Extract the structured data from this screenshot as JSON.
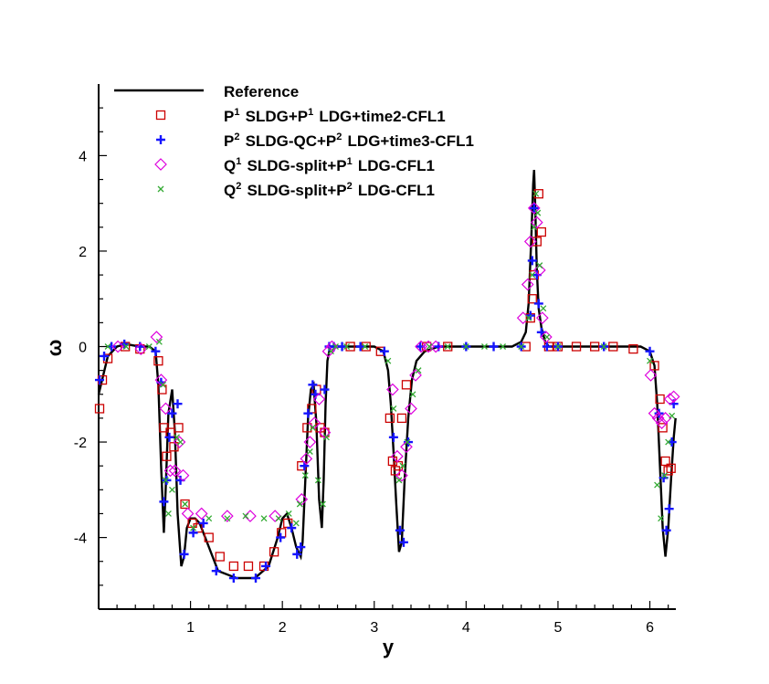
{
  "chart_data": {
    "type": "line",
    "title": "",
    "xlabel": "y",
    "ylabel": "ω",
    "xlim": [
      0,
      6.283
    ],
    "ylim": [
      -5.5,
      5.5
    ],
    "x_ticks": [
      1,
      2,
      3,
      4,
      5,
      6
    ],
    "y_ticks": [
      -4,
      -2,
      0,
      2,
      4
    ],
    "grid": false,
    "legend_position": "top-left",
    "reference": {
      "name": "Reference",
      "color": "#000000",
      "x": [
        0.0,
        0.1,
        0.2,
        0.3,
        0.45,
        0.55,
        0.62,
        0.65,
        0.68,
        0.71,
        0.73,
        0.76,
        0.8,
        0.83,
        0.86,
        0.9,
        0.93,
        0.96,
        1.0,
        1.05,
        1.1,
        1.2,
        1.3,
        1.5,
        1.7,
        1.85,
        1.95,
        2.0,
        2.05,
        2.1,
        2.15,
        2.2,
        2.22,
        2.25,
        2.28,
        2.31,
        2.34,
        2.37,
        2.4,
        2.43,
        2.45,
        2.47,
        2.49,
        2.52,
        2.6,
        2.8,
        3.0,
        3.1,
        3.15,
        3.18,
        3.21,
        3.24,
        3.27,
        3.3,
        3.33,
        3.37,
        3.41,
        3.46,
        3.55,
        3.7,
        4.0,
        4.3,
        4.5,
        4.6,
        4.65,
        4.68,
        4.71,
        4.73,
        4.74,
        4.75,
        4.77,
        4.79,
        4.82,
        4.86,
        4.9,
        5.0,
        5.5,
        5.9,
        6.0,
        6.05,
        6.08,
        6.11,
        6.14,
        6.17,
        6.2,
        6.23,
        6.26,
        6.28
      ],
      "y": [
        -1.0,
        -0.2,
        0.0,
        0.05,
        0.0,
        0.0,
        -0.1,
        -0.8,
        -2.5,
        -3.9,
        -3.0,
        -1.4,
        -0.9,
        -1.8,
        -3.5,
        -4.6,
        -4.4,
        -3.8,
        -3.6,
        -3.6,
        -3.7,
        -4.2,
        -4.7,
        -4.85,
        -4.85,
        -4.6,
        -4.0,
        -3.6,
        -3.5,
        -3.8,
        -4.2,
        -4.4,
        -4.1,
        -2.8,
        -1.5,
        -0.9,
        -0.8,
        -1.6,
        -3.2,
        -3.8,
        -2.8,
        -1.2,
        -0.3,
        0.0,
        0.0,
        0.0,
        0.0,
        -0.1,
        -0.5,
        -1.2,
        -2.2,
        -3.3,
        -4.3,
        -4.1,
        -2.8,
        -1.5,
        -0.7,
        -0.3,
        -0.1,
        0.0,
        0.0,
        0.0,
        0.0,
        0.1,
        0.3,
        0.9,
        2.3,
        3.4,
        3.7,
        3.1,
        1.6,
        0.8,
        0.4,
        0.1,
        0.0,
        0.0,
        0.0,
        0.0,
        -0.1,
        -0.4,
        -1.2,
        -2.5,
        -3.8,
        -4.4,
        -3.8,
        -2.8,
        -1.9,
        -1.5
      ]
    },
    "series": [
      {
        "name": "P¹ SLDG+P¹ LDG+time2-CFL1",
        "marker": "square",
        "color": "#cc0000",
        "x": [
          0.01,
          0.04,
          0.1,
          0.29,
          0.45,
          0.65,
          0.69,
          0.71,
          0.74,
          0.78,
          0.82,
          0.87,
          0.94,
          1.02,
          1.08,
          1.2,
          1.32,
          1.47,
          1.63,
          1.8,
          1.91,
          1.99,
          2.06,
          2.21,
          2.27,
          2.32,
          2.37,
          2.41,
          2.46,
          2.74,
          2.91,
          3.07,
          3.17,
          3.2,
          3.23,
          3.26,
          3.3,
          3.35,
          3.57,
          3.8,
          4.65,
          4.7,
          4.72,
          4.74,
          4.77,
          4.79,
          4.82,
          4.9,
          5.0,
          5.2,
          5.4,
          5.6,
          5.82,
          6.05,
          6.11,
          6.14,
          6.17,
          6.2,
          6.23
        ],
        "y": [
          -1.3,
          -0.7,
          -0.25,
          0.0,
          -0.05,
          -0.3,
          -0.9,
          -1.7,
          -2.3,
          -1.8,
          -2.1,
          -1.7,
          -3.3,
          -3.7,
          -3.8,
          -4.0,
          -4.4,
          -4.6,
          -4.6,
          -4.6,
          -4.3,
          -3.9,
          -3.7,
          -2.5,
          -1.7,
          -1.3,
          -0.9,
          -1.7,
          -1.8,
          0.0,
          0.0,
          -0.1,
          -1.5,
          -2.4,
          -2.6,
          -2.5,
          -1.5,
          -0.8,
          0.0,
          0.0,
          0.0,
          0.6,
          1.0,
          1.5,
          2.2,
          3.2,
          2.4,
          0.0,
          0.0,
          0.0,
          0.0,
          0.0,
          -0.05,
          -0.4,
          -1.1,
          -1.7,
          -2.4,
          -2.6,
          -2.55
        ]
      },
      {
        "name": "P² SLDG-QC+P² LDG+time3-CFL1",
        "marker": "plus",
        "color": "#1515ff",
        "x": [
          0.01,
          0.06,
          0.14,
          0.28,
          0.45,
          0.62,
          0.68,
          0.71,
          0.74,
          0.77,
          0.8,
          0.86,
          0.89,
          0.93,
          1.03,
          1.14,
          1.28,
          1.47,
          1.71,
          1.82,
          1.98,
          2.1,
          2.16,
          2.2,
          2.24,
          2.28,
          2.33,
          2.36,
          2.46,
          2.51,
          2.56,
          2.65,
          2.85,
          3.11,
          3.21,
          3.28,
          3.32,
          3.37,
          3.5,
          3.7,
          4.0,
          4.3,
          4.6,
          4.7,
          4.72,
          4.74,
          4.77,
          4.79,
          4.82,
          4.88,
          5.0,
          5.5,
          6.0,
          6.1,
          6.15,
          6.18,
          6.21,
          6.24,
          6.26
        ],
        "y": [
          -0.7,
          -0.2,
          0.0,
          0.05,
          0.0,
          -0.1,
          -0.75,
          -3.25,
          -2.8,
          -1.9,
          -1.4,
          -1.2,
          -2.8,
          -4.35,
          -3.9,
          -3.7,
          -4.7,
          -4.85,
          -4.85,
          -4.6,
          -4.0,
          -3.8,
          -4.35,
          -4.2,
          -2.5,
          -1.4,
          -0.8,
          -1.0,
          -0.9,
          0.0,
          0.0,
          0.0,
          0.0,
          -0.1,
          -1.9,
          -3.85,
          -4.1,
          -2.0,
          0.0,
          0.0,
          0.0,
          0.0,
          0.0,
          0.65,
          1.8,
          2.9,
          1.5,
          0.9,
          0.3,
          0.0,
          0.0,
          0.0,
          -0.1,
          -1.4,
          -2.75,
          -3.85,
          -3.4,
          -2.0,
          -1.2
        ]
      },
      {
        "name": "Q¹ SLDG-split+P¹ LDG-CFL1",
        "marker": "diamond",
        "color": "#dd00dd",
        "x": [
          0.21,
          0.46,
          0.63,
          0.68,
          0.73,
          0.78,
          0.83,
          0.88,
          0.92,
          0.97,
          1.12,
          1.4,
          1.65,
          1.92,
          2.21,
          2.26,
          2.3,
          2.35,
          2.4,
          2.46,
          2.5,
          2.54,
          3.2,
          3.25,
          3.3,
          3.35,
          3.4,
          3.45,
          3.51,
          3.59,
          3.67,
          4.62,
          4.67,
          4.7,
          4.74,
          4.77,
          4.8,
          4.83,
          4.87,
          6.01,
          6.05,
          6.09,
          6.13,
          6.17,
          6.22,
          6.26
        ],
        "y": [
          0.0,
          -0.05,
          0.2,
          -0.7,
          -1.3,
          -2.6,
          -2.6,
          -2.0,
          -2.7,
          -3.5,
          -3.5,
          -3.55,
          -3.55,
          -3.55,
          -3.2,
          -2.35,
          -2.0,
          -1.6,
          -1.1,
          -1.8,
          -0.1,
          0.0,
          -0.9,
          -2.3,
          -2.7,
          -2.1,
          -1.3,
          -0.6,
          0.0,
          0.0,
          0.0,
          0.6,
          1.3,
          2.2,
          2.9,
          2.6,
          1.6,
          0.6,
          0.2,
          -0.6,
          -1.4,
          -1.5,
          -1.6,
          -1.5,
          -1.1,
          -1.05
        ]
      },
      {
        "name": "Q² SLDG-split+P² LDG-CFL1",
        "marker": "x",
        "color": "#33aa33",
        "x": [
          0.1,
          0.3,
          0.55,
          0.66,
          0.7,
          0.73,
          0.76,
          0.8,
          0.85,
          0.89,
          0.94,
          1.03,
          1.2,
          1.4,
          1.6,
          1.8,
          1.96,
          2.07,
          2.15,
          2.19,
          2.25,
          2.3,
          2.33,
          2.39,
          2.44,
          2.48,
          2.53,
          2.58,
          2.7,
          2.9,
          3.15,
          3.21,
          3.27,
          3.31,
          3.36,
          3.42,
          3.48,
          3.6,
          3.8,
          4.0,
          4.2,
          4.4,
          4.6,
          4.68,
          4.72,
          4.74,
          4.76,
          4.78,
          4.8,
          4.84,
          4.88,
          5.0,
          5.5,
          6.0,
          6.08,
          6.12,
          6.16,
          6.2,
          6.24
        ],
        "y": [
          0.0,
          0.0,
          0.0,
          0.1,
          -0.8,
          -2.8,
          -3.5,
          -3.0,
          -1.9,
          -2.0,
          -3.3,
          -3.8,
          -3.6,
          -3.6,
          -3.55,
          -3.6,
          -3.6,
          -3.5,
          -3.7,
          -3.3,
          -2.7,
          -2.2,
          -1.7,
          -2.8,
          -3.3,
          -1.9,
          -0.1,
          0.0,
          0.0,
          0.0,
          -0.3,
          -1.3,
          -2.8,
          -2.5,
          -2.0,
          -1.0,
          -0.5,
          0.0,
          0.0,
          0.0,
          0.0,
          0.0,
          0.0,
          0.6,
          1.5,
          2.5,
          3.2,
          2.8,
          1.7,
          0.8,
          0.2,
          0.0,
          0.0,
          -0.3,
          -2.9,
          -3.6,
          -2.7,
          -2.0,
          -1.45
        ]
      }
    ]
  }
}
